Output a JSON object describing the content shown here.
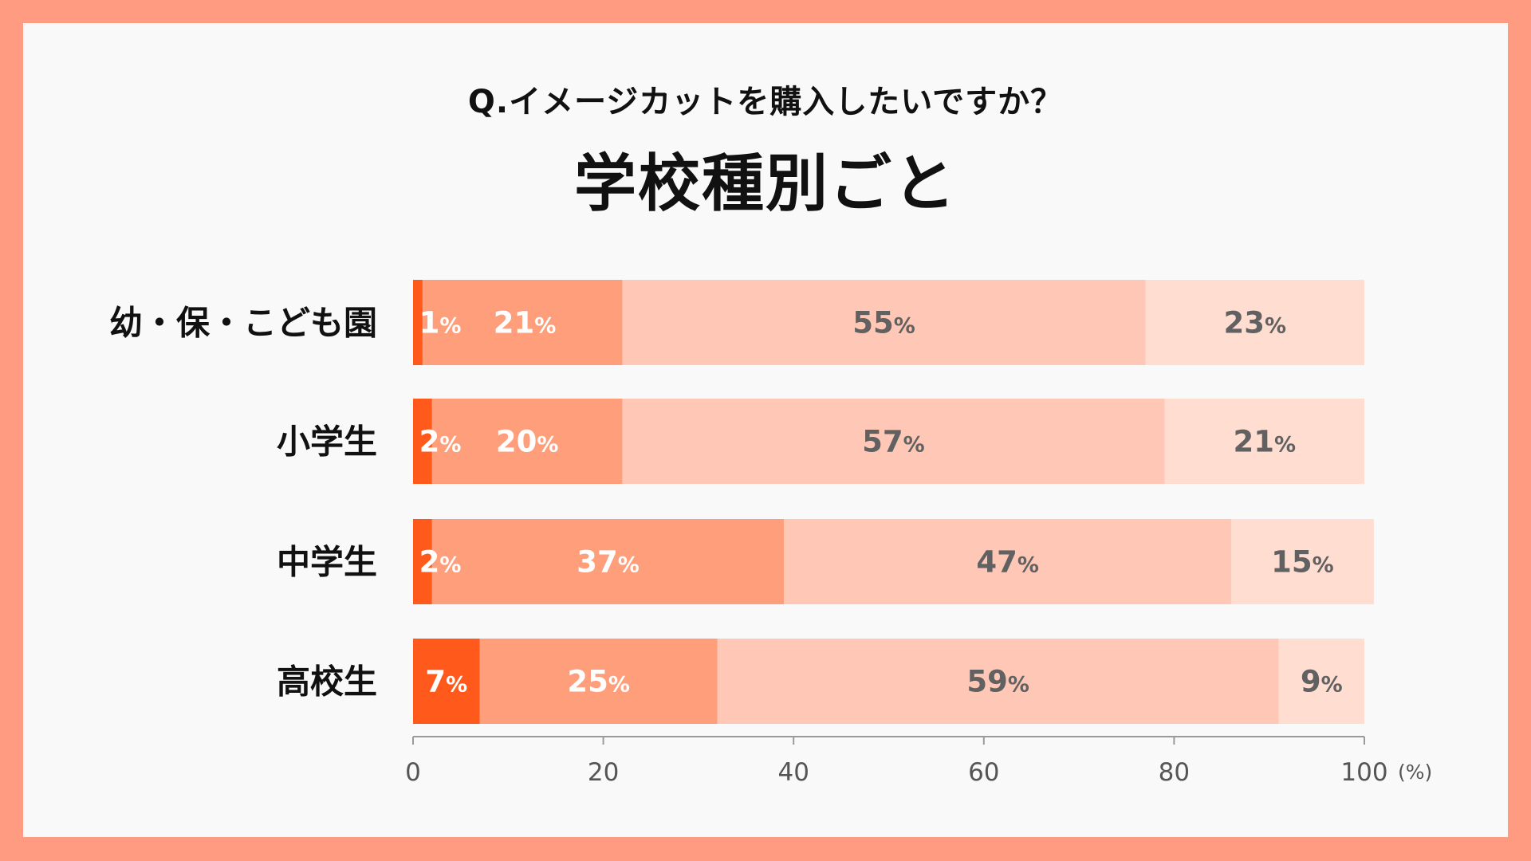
{
  "question": "Q.イメージカットを購入したいですか？",
  "title": "学校種別ごと",
  "colors": {
    "background_frame": "#FF9B81",
    "card": "#F9F9F9",
    "segments": [
      "#FF5A1C",
      "#FF9E7A",
      "#FFC7B6",
      "#FFDDD1"
    ],
    "segment_text": [
      "#FFFFFF",
      "#FFFFFF",
      "#616161",
      "#616161"
    ]
  },
  "chart_data": {
    "type": "bar",
    "orientation": "horizontal",
    "stacked": true,
    "categories": [
      "幼・保・こども園",
      "小学生",
      "中学生",
      "高校生"
    ],
    "series": [
      {
        "values": [
          1,
          2,
          2,
          7
        ]
      },
      {
        "values": [
          21,
          20,
          37,
          25
        ]
      },
      {
        "values": [
          55,
          57,
          47,
          59
        ]
      },
      {
        "values": [
          23,
          21,
          15,
          9
        ]
      }
    ],
    "value_suffix": "%",
    "xlim": [
      0,
      100
    ],
    "xticks": [
      "0",
      "20",
      "40",
      "60",
      "80",
      "100"
    ],
    "xunit": "(%)",
    "grid": false,
    "legend": "none"
  }
}
